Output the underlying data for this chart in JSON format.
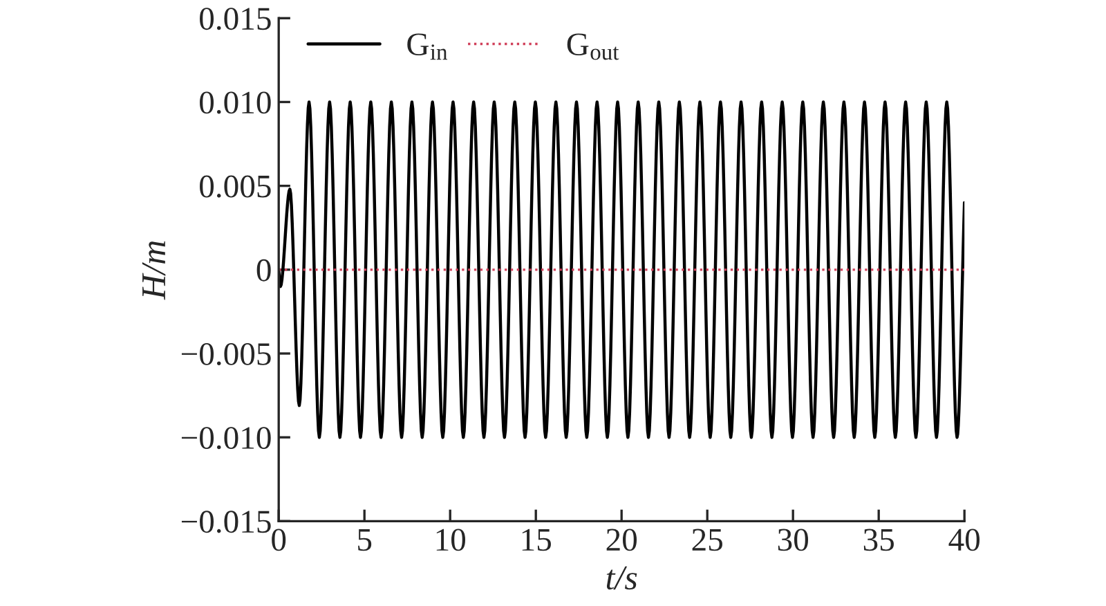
{
  "chart_data": {
    "type": "line",
    "xlabel": "t/s",
    "ylabel": "H/m",
    "xlim": [
      0,
      40
    ],
    "xticks": [
      0,
      5,
      10,
      15,
      20,
      25,
      30,
      35,
      40
    ],
    "ylim": [
      -0.015,
      0.015
    ],
    "yticks": [
      {
        "value": -0.015,
        "label": "−0.015"
      },
      {
        "value": -0.01,
        "label": "−0.010"
      },
      {
        "value": -0.005,
        "label": "−0.005"
      },
      0,
      {
        "value": 0.005,
        "label": "0.005"
      },
      {
        "value": 0.01,
        "label": "0.010"
      },
      {
        "value": 0.015,
        "label": "0.015"
      }
    ],
    "grid": false,
    "legend": "top left",
    "series": [
      {
        "name": "G$_{in}$",
        "color": "#000000",
        "line_style": "solid",
        "x": [
          0,
          0.1,
          0.65,
          1.2,
          1.77,
          2.37,
          2.97,
          3.57,
          4.17,
          4.77,
          5.37,
          5.97,
          6.57,
          7.17,
          7.77,
          8.37,
          8.97,
          9.57,
          10.17,
          10.77,
          11.37,
          11.97,
          12.57,
          13.17,
          13.77,
          14.37,
          14.97,
          15.57,
          16.17,
          16.77,
          17.37,
          17.97,
          18.57,
          19.17,
          19.77,
          20.37,
          20.97,
          21.57,
          22.17,
          22.77,
          23.37,
          23.97,
          24.57,
          25.17,
          25.77,
          26.37,
          26.97,
          27.57,
          28.17,
          28.77,
          29.37,
          29.97,
          30.57,
          31.17,
          31.77,
          32.37,
          32.97,
          33.57,
          34.17,
          34.77,
          35.37,
          35.97,
          36.57,
          37.17,
          37.77,
          38.37,
          38.97,
          39.57,
          40
        ],
        "values": [
          0,
          -0.001,
          0.0048,
          -0.0081,
          0.01,
          -0.01,
          0.01,
          -0.01,
          0.01,
          -0.01,
          0.01,
          -0.01,
          0.01,
          -0.01,
          0.01,
          -0.01,
          0.01,
          -0.01,
          0.01,
          -0.01,
          0.01,
          -0.01,
          0.01,
          -0.01,
          0.01,
          -0.01,
          0.01,
          -0.01,
          0.01,
          -0.01,
          0.01,
          -0.01,
          0.01,
          -0.01,
          0.01,
          -0.01,
          0.01,
          -0.01,
          0.01,
          -0.01,
          0.01,
          -0.01,
          0.01,
          -0.01,
          0.01,
          -0.01,
          0.01,
          -0.01,
          0.01,
          -0.01,
          0.01,
          -0.01,
          0.01,
          -0.01,
          0.01,
          -0.01,
          0.01,
          -0.01,
          0.01,
          -0.01,
          0.01,
          -0.01,
          0.01,
          -0.01,
          0.01,
          -0.01,
          0.01,
          -0.01,
          0.004
        ]
      },
      {
        "name": "G$_{out}$",
        "color": "#d0405a",
        "line_style": "dotted",
        "x": [
          0,
          40
        ],
        "values": [
          0,
          0
        ]
      }
    ]
  }
}
